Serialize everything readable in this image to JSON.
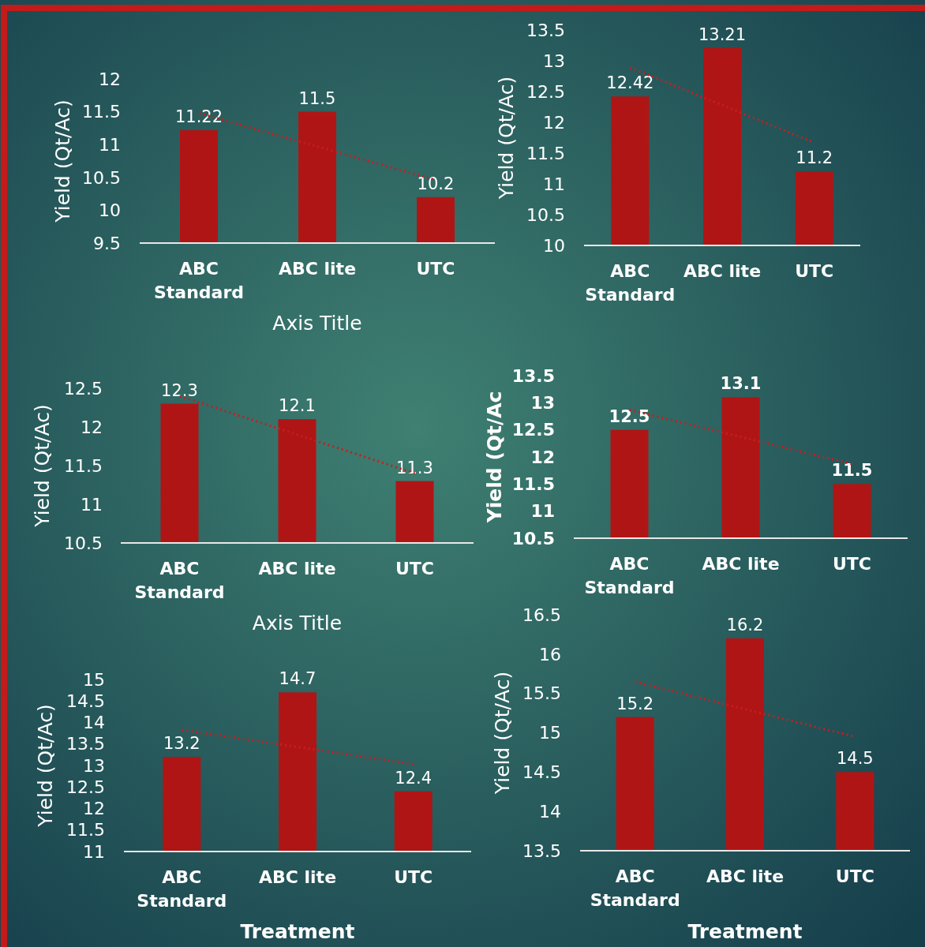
{
  "chart_data": [
    {
      "type": "bar",
      "ylabel": "Yield (Qt/Ac)",
      "xlabel": "Axis Title",
      "categories": [
        "ABC Standard",
        "ABC lite",
        "UTC"
      ],
      "ylim": [
        9.5,
        12
      ],
      "yticks": [
        9.5,
        10,
        10.5,
        11,
        11.5,
        12
      ],
      "series": [
        {
          "type": "bar",
          "color": "#b01515",
          "values": [
            11.22,
            11.5,
            10.2
          ],
          "value_labels": [
            "11.22",
            "11.5",
            "10.2"
          ]
        },
        {
          "type": "line",
          "x": [
            "ABC Standard",
            "ABC lite",
            "UTC"
          ],
          "color": "#c81e1e",
          "line_style": "dotted",
          "values": [
            11.48,
            10.97,
            10.46
          ]
        }
      ]
    },
    {
      "type": "bar",
      "ylabel": "Yield (Qt/Ac)",
      "categories": [
        "ABC Standard",
        "ABC lite",
        "UTC"
      ],
      "ylim": [
        10,
        13.5
      ],
      "yticks": [
        10,
        10.5,
        11,
        11.5,
        12,
        12.5,
        13,
        13.5
      ],
      "series": [
        {
          "type": "bar",
          "color": "#b01515",
          "values": [
            12.42,
            13.21,
            11.2
          ],
          "value_labels": [
            "12.42",
            "13.21",
            "11.2"
          ]
        },
        {
          "type": "line",
          "x": [
            "ABC Standard",
            "ABC lite",
            "UTC"
          ],
          "color": "#c81e1e",
          "line_style": "dotted",
          "values": [
            12.89,
            12.28,
            11.67
          ]
        }
      ]
    },
    {
      "type": "bar",
      "ylabel": "Yield (Qt/Ac)",
      "xlabel": "Axis Title",
      "categories": [
        "ABC Standard",
        "ABC lite",
        "UTC"
      ],
      "ylim": [
        10.5,
        12.5
      ],
      "yticks": [
        10.5,
        11,
        11.5,
        12,
        12.5
      ],
      "series": [
        {
          "type": "bar",
          "color": "#b01515",
          "values": [
            12.3,
            12.1,
            11.3
          ],
          "value_labels": [
            "12.3",
            "12.1",
            "11.3"
          ]
        },
        {
          "type": "line",
          "x": [
            "ABC Standard",
            "ABC lite",
            "UTC"
          ],
          "color": "#c81e1e",
          "line_style": "dotted",
          "values": [
            12.4,
            11.9,
            11.4
          ]
        }
      ]
    },
    {
      "type": "bar",
      "ylabel": "Yield (Qt/Ac",
      "categories": [
        "ABC Standard",
        "ABC lite",
        "UTC"
      ],
      "ylim": [
        10.5,
        13.5
      ],
      "yticks": [
        10.5,
        11,
        11.5,
        12,
        12.5,
        13,
        13.5
      ],
      "series": [
        {
          "type": "bar",
          "color": "#b01515",
          "values": [
            12.5,
            13.1,
            11.5
          ],
          "value_labels": [
            "12.5",
            "13.1",
            "11.5"
          ]
        },
        {
          "type": "line",
          "x": [
            "ABC Standard",
            "ABC lite",
            "UTC"
          ],
          "color": "#c81e1e",
          "line_style": "dotted",
          "values": [
            12.87,
            12.37,
            11.87
          ]
        }
      ]
    },
    {
      "type": "bar",
      "ylabel": "Yield (Qt/Ac)",
      "xlabel": "Treatment",
      "categories": [
        "ABC Standard",
        "ABC lite",
        "UTC"
      ],
      "ylim": [
        11,
        15
      ],
      "yticks": [
        11,
        11.5,
        12,
        12.5,
        13,
        13.5,
        14,
        14.5,
        15
      ],
      "series": [
        {
          "type": "bar",
          "color": "#b01515",
          "values": [
            13.2,
            14.7,
            12.4
          ],
          "value_labels": [
            "13.2",
            "14.7",
            "12.4"
          ]
        },
        {
          "type": "line",
          "x": [
            "ABC Standard",
            "ABC lite",
            "UTC"
          ],
          "color": "#c81e1e",
          "line_style": "dotted",
          "values": [
            13.83,
            13.43,
            13.03
          ]
        }
      ]
    },
    {
      "type": "bar",
      "ylabel": "Yield (Qt/Ac)",
      "xlabel": "Treatment",
      "categories": [
        "ABC Standard",
        "ABC lite",
        "UTC"
      ],
      "ylim": [
        13.5,
        16.5
      ],
      "yticks": [
        13.5,
        14,
        14.5,
        15,
        15.5,
        16,
        16.5
      ],
      "series": [
        {
          "type": "bar",
          "color": "#b01515",
          "values": [
            15.2,
            16.2,
            14.5
          ],
          "value_labels": [
            "15.2",
            "16.2",
            "14.5"
          ]
        },
        {
          "type": "line",
          "x": [
            "ABC Standard",
            "ABC lite",
            "UTC"
          ],
          "color": "#c81e1e",
          "line_style": "dotted",
          "values": [
            15.65,
            15.3,
            14.95
          ]
        }
      ]
    }
  ]
}
